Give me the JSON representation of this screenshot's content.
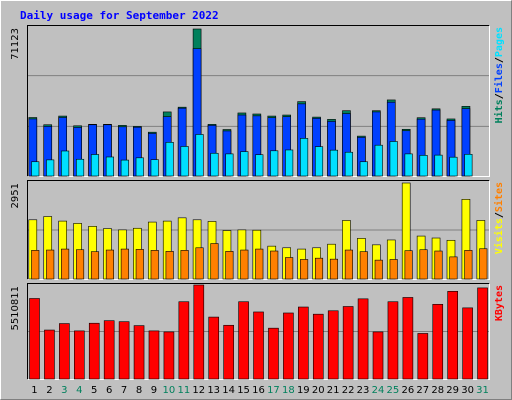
{
  "chart_data": {
    "type": "bar",
    "title": "Daily usage for September 2022",
    "categories": [
      "1",
      "2",
      "3",
      "4",
      "5",
      "6",
      "7",
      "8",
      "9",
      "10",
      "11",
      "12",
      "13",
      "14",
      "15",
      "16",
      "17",
      "18",
      "19",
      "20",
      "21",
      "22",
      "23",
      "24",
      "25",
      "26",
      "27",
      "28",
      "29",
      "30",
      "31"
    ],
    "weekend_days": [
      "3",
      "4",
      "10",
      "11",
      "17",
      "18",
      "24",
      "25",
      "31"
    ],
    "colors": {
      "background": "#c0c0c0",
      "plot_background": "#c0c0c0",
      "hits": "#00805c",
      "files": "#0040ff",
      "pages": "#00e0ff",
      "visits": "#ffff00",
      "sites": "#ff8000",
      "kbytes": "#ff0000",
      "title_text": "#0000ff",
      "weekday_text": "#000000",
      "weekend_text": "#00805c"
    },
    "panels": [
      {
        "id": "hits_files_pages",
        "max_label": "71123",
        "ymax": 71123,
        "legend": [
          {
            "text": "Hits",
            "color": "#00805c"
          },
          {
            "text": "/",
            "color": "#000000"
          },
          {
            "text": "Files",
            "color": "#0040ff"
          },
          {
            "text": "/",
            "color": "#000000"
          },
          {
            "text": "Pages",
            "color": "#00e0ff"
          }
        ],
        "series": [
          {
            "name": "Hits",
            "values": [
              28300,
              24800,
              29000,
              24300,
              25000,
              25000,
              24500,
              24000,
              21200,
              31000,
              33300,
              71123,
              25000,
              22500,
              30500,
              30000,
              29000,
              29500,
              36000,
              28500,
              27400,
              31600,
              19300,
              31600,
              36800,
              22600,
              28200,
              32500,
              27600,
              33700,
              null
            ]
          },
          {
            "name": "Files",
            "values": [
              27600,
              24000,
              28300,
              23500,
              24800,
              24800,
              23800,
              23600,
              20600,
              28700,
              32800,
              61600,
              24500,
              21800,
              29500,
              29100,
              28200,
              28700,
              34900,
              27900,
              26400,
              30200,
              18700,
              31000,
              35700,
              21900,
              27500,
              31900,
              26900,
              32600,
              null
            ]
          },
          {
            "name": "Pages",
            "values": [
              6900,
              7800,
              12100,
              8100,
              10400,
              9200,
              7700,
              8800,
              7900,
              16300,
              14300,
              20100,
              11000,
              10700,
              11800,
              10300,
              12200,
              12600,
              18200,
              14200,
              12500,
              11500,
              6900,
              14900,
              16700,
              10700,
              10000,
              10100,
              9100,
              10500,
              null
            ]
          }
        ]
      },
      {
        "id": "visits_sites",
        "max_label": "2951",
        "ymax": 2951,
        "legend": [
          {
            "text": "Visits",
            "color": "#ffff00"
          },
          {
            "text": "/",
            "color": "#000000"
          },
          {
            "text": "Sites",
            "color": "#ff8000"
          }
        ],
        "series": [
          {
            "name": "Visits",
            "values": [
              1820,
              1920,
              1780,
              1710,
              1620,
              1550,
              1510,
              1560,
              1750,
              1780,
              1880,
              1820,
              1770,
              1490,
              1510,
              1500,
              1010,
              960,
              920,
              960,
              1070,
              1800,
              1250,
              1050,
              1200,
              2951,
              1320,
              1260,
              1190,
              2450,
              1800
            ]
          },
          {
            "name": "Sites",
            "values": [
              880,
              890,
              920,
              900,
              840,
              890,
              920,
              910,
              880,
              850,
              880,
              960,
              1090,
              850,
              890,
              920,
              860,
              660,
              600,
              640,
              610,
              890,
              840,
              580,
              600,
              870,
              900,
              860,
              680,
              880,
              930
            ]
          }
        ]
      },
      {
        "id": "kbytes",
        "max_label": "5510811",
        "ymax": 5510811,
        "legend": [
          {
            "text": "KBytes",
            "color": "#ff0000"
          }
        ],
        "series": [
          {
            "name": "KBytes",
            "values": [
              4720000,
              2870000,
              3250000,
              2820000,
              3270000,
              3420000,
              3360000,
              3130000,
              2820000,
              2760000,
              4530000,
              5510811,
              3630000,
              3150000,
              4530000,
              3930000,
              2980000,
              3870000,
              4220000,
              3800000,
              4000000,
              4250000,
              4700000,
              2760000,
              4530000,
              4780000,
              2670000,
              4380000,
              5140000,
              4170000,
              5340000
            ]
          }
        ]
      }
    ]
  }
}
